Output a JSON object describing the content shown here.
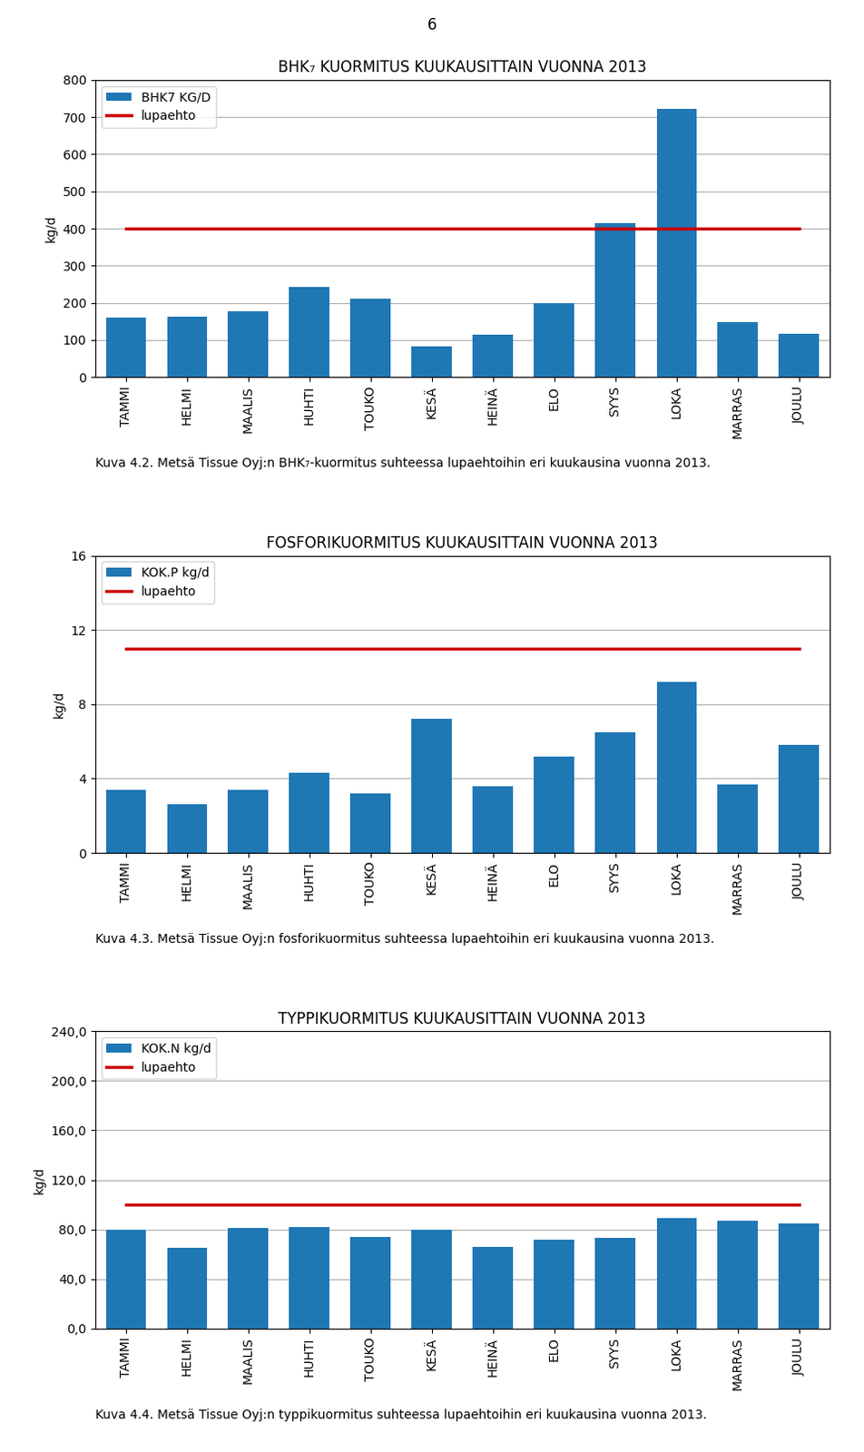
{
  "annotations": [
    "6"
  ],
  "chart_data": [
    {
      "type": "bar",
      "title": "BHK₇ KUORMITUS KUUKAUSITTAIN VUONNA 2013",
      "ylabel": "kg/d",
      "annotations": [
        "Kuva 4.2. Metsä Tissue Oyj:n BHK₇-kuormitus suhteessa lupaehtoihin eri kuukausina vuonna 2013."
      ],
      "categories": [
        "TAMMI",
        "HELMI",
        "MAALIS",
        "HUHTI",
        "TOUKO",
        "KESÄ",
        "HEINÄ",
        "ELO",
        "SYYS",
        "LOKA",
        "MARRAS",
        "JOULU"
      ],
      "series": [
        {
          "name": "BHK7 KG/D",
          "type": "bar",
          "color": "#1f77b4",
          "values": [
            160,
            162,
            178,
            242,
            212,
            82,
            115,
            200,
            415,
            722,
            148,
            118
          ]
        },
        {
          "name": "lupaehto",
          "type": "line",
          "color": "#cc0000",
          "values": [
            400,
            400,
            400,
            400,
            400,
            400,
            400,
            400,
            400,
            400,
            400,
            400
          ]
        }
      ],
      "ylim": [
        0,
        800
      ],
      "yticks": [
        0,
        100,
        200,
        300,
        400,
        500,
        600,
        700,
        800
      ],
      "grid": true,
      "legend": "upper left"
    },
    {
      "type": "bar",
      "title": "FOSFORIKUORMITUS KUUKAUSITTAIN VUONNA 2013",
      "ylabel": "kg/d",
      "annotations": [
        "Kuva 4.3. Metsä Tissue Oyj:n fosforikuormitus suhteessa lupaehtoihin eri kuukausina vuonna 2013."
      ],
      "categories": [
        "TAMMI",
        "HELMI",
        "MAALIS",
        "HUHTI",
        "TOUKO",
        "KESÄ",
        "HEINÄ",
        "ELO",
        "SYYS",
        "LOKA",
        "MARRAS",
        "JOULU"
      ],
      "series": [
        {
          "name": "KOK.P kg/d",
          "type": "bar",
          "color": "#1f77b4",
          "values": [
            3.4,
            2.6,
            3.4,
            4.3,
            3.2,
            7.2,
            3.6,
            5.2,
            6.5,
            9.2,
            3.7,
            5.8
          ]
        },
        {
          "name": "lupaehto",
          "type": "line",
          "color": "#cc0000",
          "values": [
            11.0,
            11.0,
            11.0,
            11.0,
            11.0,
            11.0,
            11.0,
            11.0,
            11.0,
            11.0,
            11.0,
            11.0
          ]
        }
      ],
      "ylim": [
        0,
        16
      ],
      "yticks": [
        0,
        4,
        8,
        12,
        16
      ],
      "grid": true,
      "legend": "upper left"
    },
    {
      "type": "bar",
      "title": "TYPPIKUORMITUS KUUKAUSITTAIN VUONNA 2013",
      "ylabel": "kg/d",
      "annotations": [
        "Kuva 4.4. Metsä Tissue Oyj:n typpikuormitus suhteessa lupaehtoihin eri kuukausina vuonna 2013."
      ],
      "categories": [
        "TAMMI",
        "HELMI",
        "MAALIS",
        "HUHTI",
        "TOUKO",
        "KESÄ",
        "HEINÄ",
        "ELO",
        "SYYS",
        "LOKA",
        "MARRAS",
        "JOULU"
      ],
      "series": [
        {
          "name": "KOK.N kg/d",
          "type": "bar",
          "color": "#1f77b4",
          "values": [
            80,
            65,
            81,
            82,
            74,
            80,
            66,
            72,
            73,
            89,
            87,
            85
          ]
        },
        {
          "name": "lupaehto",
          "type": "line",
          "color": "#cc0000",
          "values": [
            100,
            100,
            100,
            100,
            100,
            100,
            100,
            100,
            100,
            100,
            100,
            100
          ]
        }
      ],
      "ylim": [
        0,
        240
      ],
      "yticks": [
        {
          "value": 0,
          "label": "0,0"
        },
        {
          "value": 40,
          "label": "40,0"
        },
        {
          "value": 80,
          "label": "80,0"
        },
        {
          "value": 120,
          "label": "120,0"
        },
        {
          "value": 160,
          "label": "160,0"
        },
        {
          "value": 200,
          "label": "200,0"
        },
        {
          "value": 240,
          "label": "240,0"
        }
      ],
      "grid": true,
      "legend": "upper left"
    }
  ]
}
